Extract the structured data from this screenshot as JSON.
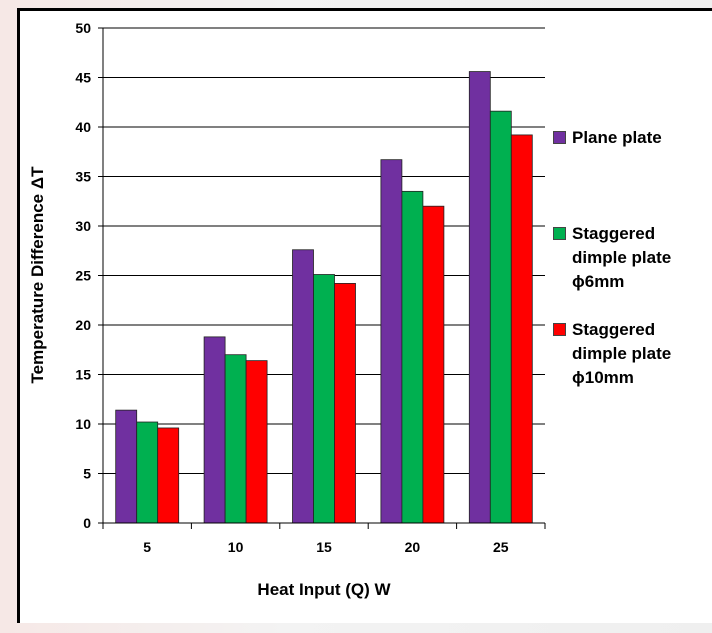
{
  "chart_data": {
    "type": "bar",
    "categories": [
      "5",
      "10",
      "15",
      "20",
      "25"
    ],
    "series": [
      {
        "name": "Plane plate",
        "color": "#7030a0",
        "values": [
          11.4,
          18.8,
          27.6,
          36.7,
          45.6
        ]
      },
      {
        "name": "Staggered dimple plate ϕ6mm",
        "color": "#00b050",
        "values": [
          10.2,
          17.0,
          25.1,
          33.5,
          41.6
        ]
      },
      {
        "name": "Staggered dimple plate ϕ10mm",
        "color": "#ff0000",
        "values": [
          9.6,
          16.4,
          24.2,
          32.0,
          39.2
        ]
      }
    ],
    "legend_labels": [
      "Plane plate",
      "Staggered\ndimple plate\nϕ6mm",
      "Staggered\ndimple plate\nϕ10mm"
    ],
    "xlabel": "Heat Input (Q) W",
    "ylabel": "Temperature Difference ΔT",
    "ylim": [
      0,
      50
    ],
    "yticks": [
      "0",
      "5",
      "10",
      "15",
      "20",
      "25",
      "30",
      "35",
      "40",
      "45",
      "50"
    ],
    "grid": true,
    "legend_position": "right"
  }
}
